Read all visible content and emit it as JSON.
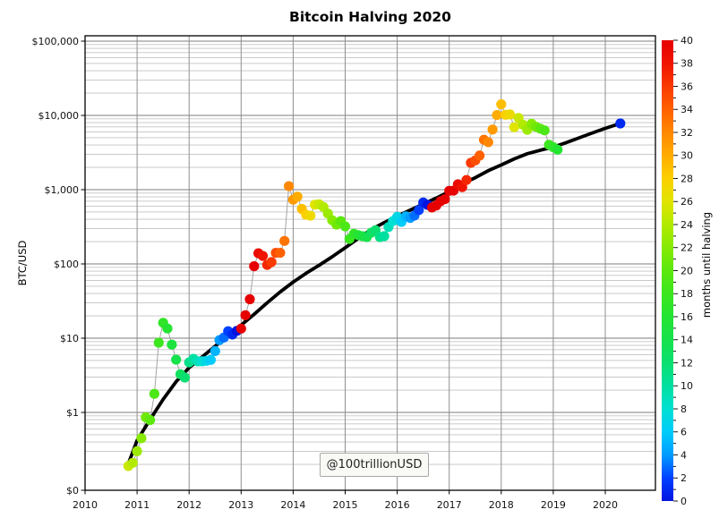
{
  "page": {
    "background": "#ffffff"
  },
  "chart_data": {
    "type": "scatter",
    "title": "Bitcoin Halving 2020",
    "ylabel": "BTC/USD",
    "watermark": "@100trillionUSD",
    "x_axis": {
      "tick_labels": [
        "2010",
        "2011",
        "2012",
        "2013",
        "2014",
        "2015",
        "2016",
        "2017",
        "2018",
        "2019",
        "2020"
      ],
      "tick_values": [
        2010,
        2011,
        2012,
        2013,
        2014,
        2015,
        2016,
        2017,
        2018,
        2019,
        2020
      ],
      "range": [
        2010,
        2020.97
      ],
      "grid": true
    },
    "y_axis": {
      "scale": "log",
      "tick_labels": [
        "$100,000",
        "$10,000",
        "$1,000",
        "$100",
        "$10",
        "$1",
        "$0"
      ],
      "tick_values": [
        100000,
        10000,
        1000,
        100,
        10,
        1,
        0
      ],
      "minor_decades": [
        0.1,
        1,
        10,
        100,
        1000,
        10000
      ],
      "top_value": 118000,
      "grid": true
    },
    "colorbar": {
      "label": "months until halving",
      "min": 0,
      "max": 40,
      "tick_labels": [
        40,
        38,
        36,
        34,
        32,
        30,
        28,
        26,
        24,
        22,
        20,
        18,
        16,
        14,
        12,
        10,
        8,
        6,
        4,
        2,
        0
      ],
      "colormap_stops": [
        [
          0,
          "#0014e0"
        ],
        [
          2,
          "#0040ff"
        ],
        [
          4,
          "#009cff"
        ],
        [
          6,
          "#00ccfa"
        ],
        [
          8,
          "#00e0d2"
        ],
        [
          10,
          "#00dfa0"
        ],
        [
          12,
          "#0ae070"
        ],
        [
          14,
          "#16e24c"
        ],
        [
          16,
          "#24e432"
        ],
        [
          18,
          "#3ce61e"
        ],
        [
          20,
          "#5ce80e"
        ],
        [
          22,
          "#86ea02"
        ],
        [
          24,
          "#b2ea00"
        ],
        [
          26,
          "#e0e400"
        ],
        [
          28,
          "#fcd000"
        ],
        [
          30,
          "#ffac00"
        ],
        [
          32,
          "#ff8800"
        ],
        [
          34,
          "#ff6000"
        ],
        [
          36,
          "#fa3a00"
        ],
        [
          38,
          "#f01400"
        ],
        [
          40,
          "#e60000"
        ]
      ]
    },
    "model_line": {
      "color": "#000000",
      "points": [
        [
          2010.85,
          0.22
        ],
        [
          2011.0,
          0.42
        ],
        [
          2011.25,
          0.8
        ],
        [
          2011.5,
          1.5
        ],
        [
          2011.75,
          2.6
        ],
        [
          2012.0,
          4.0
        ],
        [
          2012.25,
          5.6
        ],
        [
          2012.5,
          7.8
        ],
        [
          2012.75,
          11
        ],
        [
          2013.0,
          15
        ],
        [
          2013.25,
          21
        ],
        [
          2013.5,
          30
        ],
        [
          2013.75,
          42
        ],
        [
          2014.0,
          57
        ],
        [
          2014.25,
          75
        ],
        [
          2014.5,
          96
        ],
        [
          2014.75,
          125
        ],
        [
          2015.0,
          165
        ],
        [
          2015.25,
          220
        ],
        [
          2015.5,
          290
        ],
        [
          2015.75,
          360
        ],
        [
          2016.0,
          440
        ],
        [
          2016.25,
          530
        ],
        [
          2016.5,
          640
        ],
        [
          2016.75,
          770
        ],
        [
          2017.0,
          940
        ],
        [
          2017.25,
          1200
        ],
        [
          2017.5,
          1450
        ],
        [
          2017.75,
          1800
        ],
        [
          2018.0,
          2150
        ],
        [
          2018.25,
          2600
        ],
        [
          2018.5,
          3050
        ],
        [
          2018.75,
          3400
        ],
        [
          2019.0,
          3750
        ],
        [
          2019.25,
          4300
        ],
        [
          2019.5,
          5000
        ],
        [
          2019.75,
          5800
        ],
        [
          2020.0,
          6700
        ],
        [
          2020.29,
          7800
        ]
      ]
    },
    "points_format": [
      "year_fraction",
      "btc_usd_price",
      "months_until_halving"
    ],
    "points": [
      [
        2010.833,
        0.19,
        25
      ],
      [
        2010.917,
        0.21,
        24
      ],
      [
        2011.0,
        0.3,
        23
      ],
      [
        2011.083,
        0.45,
        22
      ],
      [
        2011.167,
        0.86,
        21
      ],
      [
        2011.25,
        0.79,
        20
      ],
      [
        2011.333,
        1.78,
        19
      ],
      [
        2011.417,
        8.7,
        18
      ],
      [
        2011.5,
        16.1,
        17
      ],
      [
        2011.583,
        13.5,
        16
      ],
      [
        2011.667,
        8.2,
        15
      ],
      [
        2011.75,
        5.14,
        14
      ],
      [
        2011.833,
        3.27,
        13
      ],
      [
        2011.917,
        2.95,
        12
      ],
      [
        2012.0,
        4.72,
        11
      ],
      [
        2012.083,
        5.27,
        10
      ],
      [
        2012.167,
        4.87,
        9
      ],
      [
        2012.25,
        4.88,
        8
      ],
      [
        2012.333,
        4.95,
        7
      ],
      [
        2012.417,
        5.1,
        6
      ],
      [
        2012.5,
        6.7,
        5
      ],
      [
        2012.583,
        9.4,
        4
      ],
      [
        2012.667,
        10.2,
        3
      ],
      [
        2012.75,
        12.4,
        2
      ],
      [
        2012.833,
        11.2,
        1
      ],
      [
        2012.917,
        12.56,
        0
      ],
      [
        2013.0,
        13.45,
        43
      ],
      [
        2013.083,
        20.4,
        42
      ],
      [
        2013.167,
        33.4,
        41
      ],
      [
        2013.25,
        93,
        40
      ],
      [
        2013.333,
        139,
        39
      ],
      [
        2013.417,
        128,
        38
      ],
      [
        2013.5,
        97,
        37
      ],
      [
        2013.583,
        106,
        36
      ],
      [
        2013.667,
        141,
        35
      ],
      [
        2013.75,
        141,
        34
      ],
      [
        2013.833,
        204,
        33
      ],
      [
        2013.917,
        1113,
        32
      ],
      [
        2014.0,
        732,
        31
      ],
      [
        2014.083,
        806,
        30
      ],
      [
        2014.167,
        550,
        29
      ],
      [
        2014.25,
        458,
        28
      ],
      [
        2014.333,
        446,
        27
      ],
      [
        2014.417,
        627,
        26
      ],
      [
        2014.5,
        635,
        25
      ],
      [
        2014.583,
        583,
        24
      ],
      [
        2014.667,
        477,
        23
      ],
      [
        2014.75,
        387,
        22
      ],
      [
        2014.833,
        338,
        21
      ],
      [
        2014.917,
        378,
        20
      ],
      [
        2015.0,
        320,
        19
      ],
      [
        2015.083,
        217,
        18
      ],
      [
        2015.167,
        254,
        17
      ],
      [
        2015.25,
        244,
        16
      ],
      [
        2015.333,
        236,
        15
      ],
      [
        2015.417,
        230,
        14
      ],
      [
        2015.5,
        263,
        13
      ],
      [
        2015.583,
        284,
        12
      ],
      [
        2015.667,
        230,
        11
      ],
      [
        2015.75,
        236,
        10
      ],
      [
        2015.833,
        314,
        9
      ],
      [
        2015.917,
        377,
        8
      ],
      [
        2016.0,
        430,
        7
      ],
      [
        2016.083,
        368,
        6
      ],
      [
        2016.167,
        437,
        5
      ],
      [
        2016.25,
        416,
        4
      ],
      [
        2016.333,
        448,
        3
      ],
      [
        2016.417,
        531,
        2
      ],
      [
        2016.5,
        672,
        1
      ],
      [
        2016.583,
        624,
        0
      ],
      [
        2016.667,
        575,
        45
      ],
      [
        2016.75,
        610,
        44
      ],
      [
        2016.833,
        700,
        43
      ],
      [
        2016.917,
        745,
        42
      ],
      [
        2017.0,
        964,
        41
      ],
      [
        2017.083,
        970,
        40
      ],
      [
        2017.167,
        1180,
        39
      ],
      [
        2017.25,
        1080,
        38
      ],
      [
        2017.333,
        1350,
        37
      ],
      [
        2017.417,
        2300,
        36
      ],
      [
        2017.5,
        2480,
        35
      ],
      [
        2017.583,
        2875,
        34
      ],
      [
        2017.667,
        4703,
        33
      ],
      [
        2017.75,
        4360,
        32
      ],
      [
        2017.833,
        6450,
        31
      ],
      [
        2017.917,
        10100,
        30
      ],
      [
        2018.0,
        14100,
        29
      ],
      [
        2018.083,
        10200,
        28
      ],
      [
        2018.167,
        10300,
        27
      ],
      [
        2018.25,
        6930,
        26
      ],
      [
        2018.333,
        9240,
        25
      ],
      [
        2018.417,
        7490,
        24
      ],
      [
        2018.5,
        6400,
        23
      ],
      [
        2018.583,
        7730,
        22
      ],
      [
        2018.667,
        7030,
        21
      ],
      [
        2018.75,
        6630,
        20
      ],
      [
        2018.833,
        6300,
        19
      ],
      [
        2018.917,
        4020,
        18
      ],
      [
        2019.0,
        3740,
        17
      ],
      [
        2019.083,
        3460,
        16
      ],
      [
        2020.29,
        7800,
        1
      ]
    ]
  }
}
